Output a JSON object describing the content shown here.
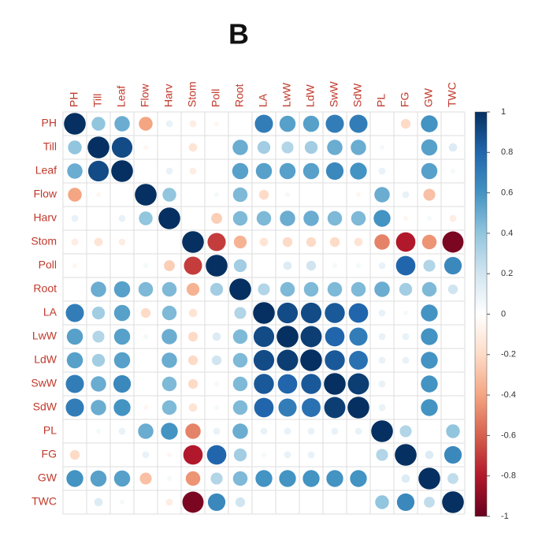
{
  "chart_data": {
    "type": "corrplot",
    "title": "B",
    "labels": [
      "PH",
      "Till",
      "Leaf",
      "Flow",
      "Harv",
      "Stom",
      "Poll",
      "Root",
      "LA",
      "LwW",
      "LdW",
      "SwW",
      "SdW",
      "PL",
      "FG",
      "GW",
      "TWC"
    ],
    "values": [
      [
        1,
        0.4,
        0.5,
        -0.4,
        0.1,
        -0.1,
        -0.05,
        0,
        0.7,
        0.55,
        0.55,
        0.7,
        0.7,
        0,
        -0.2,
        0.6,
        0
      ],
      [
        0.4,
        1,
        0.9,
        -0.05,
        0,
        -0.15,
        0,
        0.5,
        0.35,
        0.3,
        0.35,
        0.5,
        0.5,
        0.05,
        0,
        0.55,
        0.15
      ],
      [
        0.5,
        0.9,
        1,
        0,
        0.1,
        -0.1,
        0,
        0.55,
        0.55,
        0.55,
        0.55,
        0.65,
        0.6,
        0.1,
        0,
        0.55,
        0.05
      ],
      [
        -0.4,
        -0.05,
        0,
        1,
        0.4,
        0,
        0.05,
        0.45,
        -0.2,
        0.05,
        0,
        0,
        -0.05,
        0.5,
        0.1,
        -0.3,
        0
      ],
      [
        0.1,
        0,
        0.1,
        0.4,
        1,
        0,
        -0.25,
        0.45,
        0.45,
        0.5,
        0.5,
        0.45,
        0.45,
        0.6,
        -0.05,
        0.05,
        -0.1
      ],
      [
        -0.1,
        -0.15,
        -0.1,
        0,
        0,
        1,
        -0.7,
        -0.35,
        -0.15,
        -0.2,
        -0.2,
        -0.2,
        -0.15,
        -0.5,
        -0.8,
        -0.45,
        -0.95
      ],
      [
        -0.05,
        0,
        0,
        0.05,
        -0.25,
        -0.7,
        1,
        0.35,
        0,
        0.15,
        0.2,
        0.05,
        0.05,
        0.1,
        0.8,
        0.3,
        0.65
      ],
      [
        0,
        0.5,
        0.55,
        0.45,
        0.45,
        -0.35,
        0.35,
        1,
        0.3,
        0.45,
        0.45,
        0.45,
        0.45,
        0.5,
        0.35,
        0.45,
        0.2
      ],
      [
        0.7,
        0.35,
        0.55,
        -0.2,
        0.45,
        -0.15,
        0,
        0.3,
        1,
        0.9,
        0.9,
        0.85,
        0.8,
        0.1,
        0.05,
        0.6,
        0
      ],
      [
        0.55,
        0.3,
        0.55,
        0.05,
        0.5,
        -0.2,
        0.15,
        0.45,
        0.9,
        1,
        0.95,
        0.8,
        0.7,
        0.1,
        0.1,
        0.6,
        0
      ],
      [
        0.55,
        0.35,
        0.55,
        0,
        0.5,
        -0.2,
        0.2,
        0.45,
        0.9,
        0.95,
        1,
        0.85,
        0.75,
        0.1,
        0.1,
        0.6,
        0
      ],
      [
        0.7,
        0.5,
        0.65,
        0,
        0.45,
        -0.2,
        0.05,
        0.45,
        0.85,
        0.8,
        0.85,
        1,
        0.95,
        0.1,
        0,
        0.6,
        0
      ],
      [
        0.7,
        0.5,
        0.6,
        -0.05,
        0.45,
        -0.15,
        0.05,
        0.45,
        0.8,
        0.7,
        0.75,
        0.95,
        1,
        0.1,
        0,
        0.6,
        0
      ],
      [
        0,
        0.05,
        0.1,
        0.5,
        0.6,
        -0.5,
        0.1,
        0.5,
        0.1,
        0.1,
        0.1,
        0.1,
        0.1,
        1,
        0.3,
        0,
        0.4
      ],
      [
        -0.2,
        0,
        0,
        0.1,
        -0.05,
        -0.8,
        0.8,
        0.35,
        0.05,
        0.1,
        0.1,
        0,
        0,
        0.3,
        1,
        0.15,
        0.65
      ],
      [
        0.6,
        0.55,
        0.55,
        -0.3,
        0.05,
        -0.45,
        0.3,
        0.45,
        0.6,
        0.6,
        0.6,
        0.6,
        0.6,
        0,
        0.15,
        1,
        0.25
      ],
      [
        0,
        0.15,
        0.05,
        0,
        -0.1,
        -0.95,
        0.65,
        0.2,
        0,
        0,
        0,
        0,
        0,
        0.4,
        0.65,
        0.25,
        1
      ]
    ],
    "clim": [
      -1,
      1
    ],
    "cticks": [
      1,
      0.8,
      0.6,
      0.4,
      0.2,
      0,
      -0.2,
      -0.4,
      -0.6,
      -0.8,
      -1
    ],
    "colors": [
      "#67001f",
      "#b2182b",
      "#d6604d",
      "#f4a582",
      "#fddbc7",
      "#ffffff",
      "#d1e5f0",
      "#92c5de",
      "#4393c3",
      "#2166ac",
      "#053061"
    ]
  }
}
